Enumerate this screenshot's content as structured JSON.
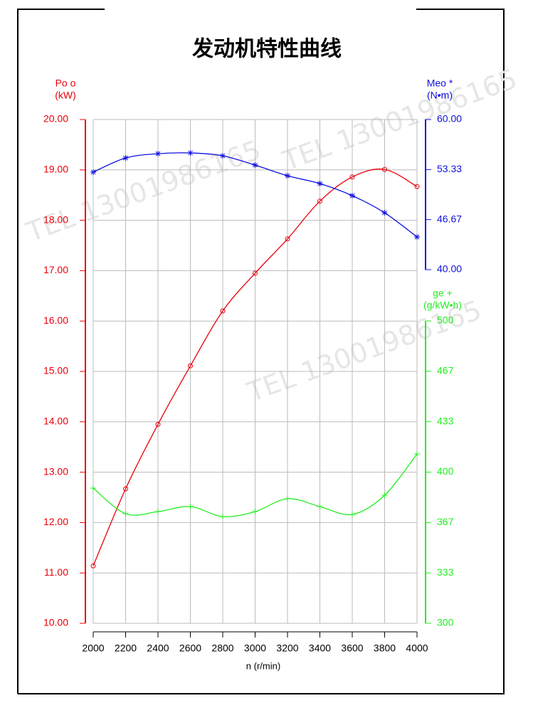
{
  "chart_data": {
    "type": "line",
    "title": "发动机特性曲线",
    "xlabel": "n (r/min)",
    "watermark": "TEL 13001986165",
    "x": [
      2000,
      2200,
      2400,
      2600,
      2800,
      3000,
      3200,
      3400,
      3600,
      3800,
      4000
    ],
    "xlim": [
      2000,
      4000
    ],
    "xticks": [
      2000,
      2200,
      2400,
      2600,
      2800,
      3000,
      3200,
      3400,
      3600,
      3800,
      4000
    ],
    "ylim": [
      10,
      20
    ],
    "yticks": [
      {
        "value": 10,
        "label": "10.00"
      },
      {
        "value": 11,
        "label": "11.00"
      },
      {
        "value": 12,
        "label": "12.00"
      },
      {
        "value": 13,
        "label": "13.00"
      },
      {
        "value": 14,
        "label": "14.00"
      },
      {
        "value": 15,
        "label": "15.00"
      },
      {
        "value": 16,
        "label": "16.00"
      },
      {
        "value": 17,
        "label": "17.00"
      },
      {
        "value": 18,
        "label": "18.00"
      },
      {
        "value": 19,
        "label": "19.00"
      },
      {
        "value": 20,
        "label": "20.00"
      }
    ],
    "y2lim": [
      40,
      60
    ],
    "y2ticks": [
      {
        "value": 40,
        "label": "40.00"
      },
      46.67,
      53.33,
      {
        "value": 60,
        "label": "60.00"
      }
    ],
    "y3lim": [
      300,
      500
    ],
    "y3ticks": [
      300,
      {
        "value": 333.33,
        "label": "333"
      },
      {
        "value": 366.67,
        "label": "367"
      },
      400,
      {
        "value": 433.33,
        "label": "433"
      },
      {
        "value": 466.67,
        "label": "467"
      },
      500
    ],
    "grid": true,
    "series": [
      {
        "name": "Po o",
        "unit": "(kW)",
        "color": "#e8000b",
        "marker": "circle",
        "axis": "y",
        "values": [
          11.14,
          12.67,
          13.95,
          15.11,
          16.2,
          16.95,
          17.63,
          18.38,
          18.86,
          19.01,
          18.67
        ]
      },
      {
        "name": "Meo *",
        "unit": "(N•m)",
        "color": "#1010e0",
        "marker": "star",
        "axis": "y2",
        "values": [
          52.99,
          54.88,
          55.45,
          55.55,
          55.17,
          53.93,
          52.51,
          51.47,
          49.86,
          47.58,
          44.36
        ]
      },
      {
        "name": "ge +",
        "unit": "(g/kW•h)",
        "color": "#22ee22",
        "marker": "plus",
        "axis": "y3",
        "values": [
          389.4,
          372.5,
          373.9,
          377.2,
          370.6,
          373.9,
          382.4,
          377.2,
          372,
          384.7,
          412
        ]
      }
    ]
  }
}
